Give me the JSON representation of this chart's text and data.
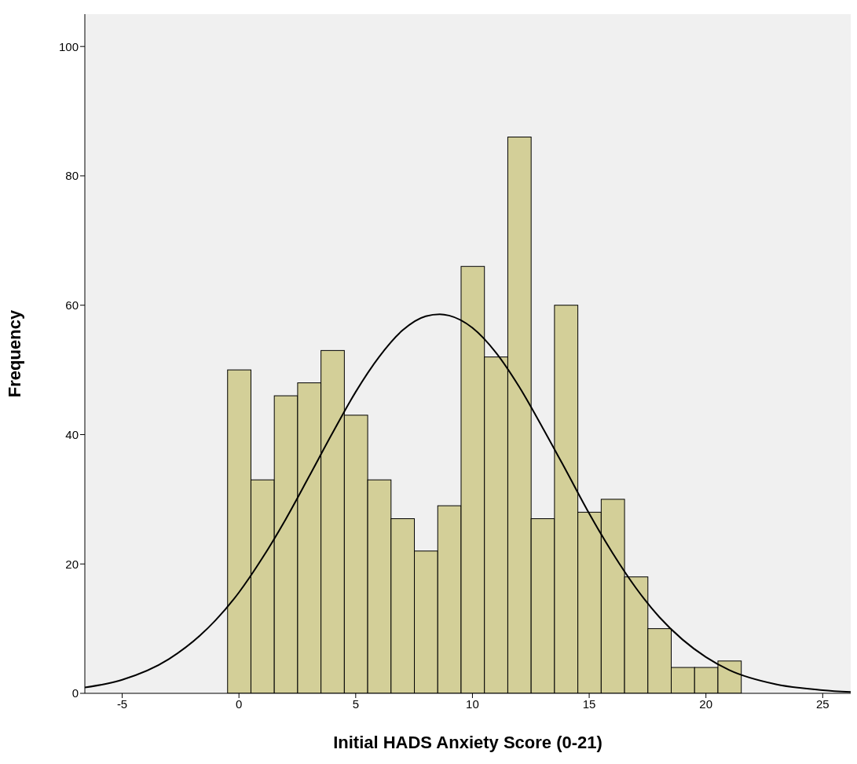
{
  "chart_data": {
    "type": "histogram",
    "xlabel": "Initial HADS Anxiety Score (0-21)",
    "ylabel": "Frequency",
    "bins": [
      -0.5,
      0.5,
      1.5,
      2.5,
      3.5,
      4.5,
      5.5,
      6.5,
      7.5,
      8.5,
      9.5,
      10.5,
      11.5,
      12.5,
      13.5,
      14.5,
      15.5,
      16.5,
      17.5,
      18.5,
      19.5,
      20.5,
      21.5
    ],
    "values": [
      50,
      33,
      46,
      48,
      53,
      43,
      33,
      27,
      22,
      29,
      66,
      52,
      86,
      27,
      60,
      28,
      30,
      18,
      10,
      4,
      4,
      5
    ],
    "color": "#d3cf98",
    "series": [
      {
        "type": "line",
        "color": "#000000",
        "x": [
          -6.6,
          -5,
          -3,
          -1,
          0,
          1,
          2,
          3,
          4,
          5,
          6,
          7,
          8,
          8.6,
          9,
          10,
          11,
          12,
          13,
          14,
          15,
          16,
          17,
          18,
          19,
          20,
          21,
          23,
          25,
          26.2
        ],
        "values": [
          0.9,
          2.1,
          5.3,
          11.3,
          15.6,
          20.9,
          26.9,
          33.5,
          40.2,
          46.6,
          52,
          56.1,
          58.3,
          58.6,
          58.4,
          56.5,
          52.7,
          47.4,
          41.1,
          34.5,
          27.8,
          21.7,
          16.3,
          11.8,
          8.3,
          5.6,
          3.6,
          1.4,
          0.5,
          0.2
        ]
      }
    ],
    "xlim": [
      -6.6,
      26.2
    ],
    "xticks": [
      -5,
      0,
      5,
      10,
      15,
      20,
      25
    ],
    "ylim": [
      0,
      105
    ],
    "yticks": [
      0,
      20,
      40,
      60,
      80,
      100
    ],
    "grid": false,
    "marker": "none",
    "line_style": "solid"
  }
}
